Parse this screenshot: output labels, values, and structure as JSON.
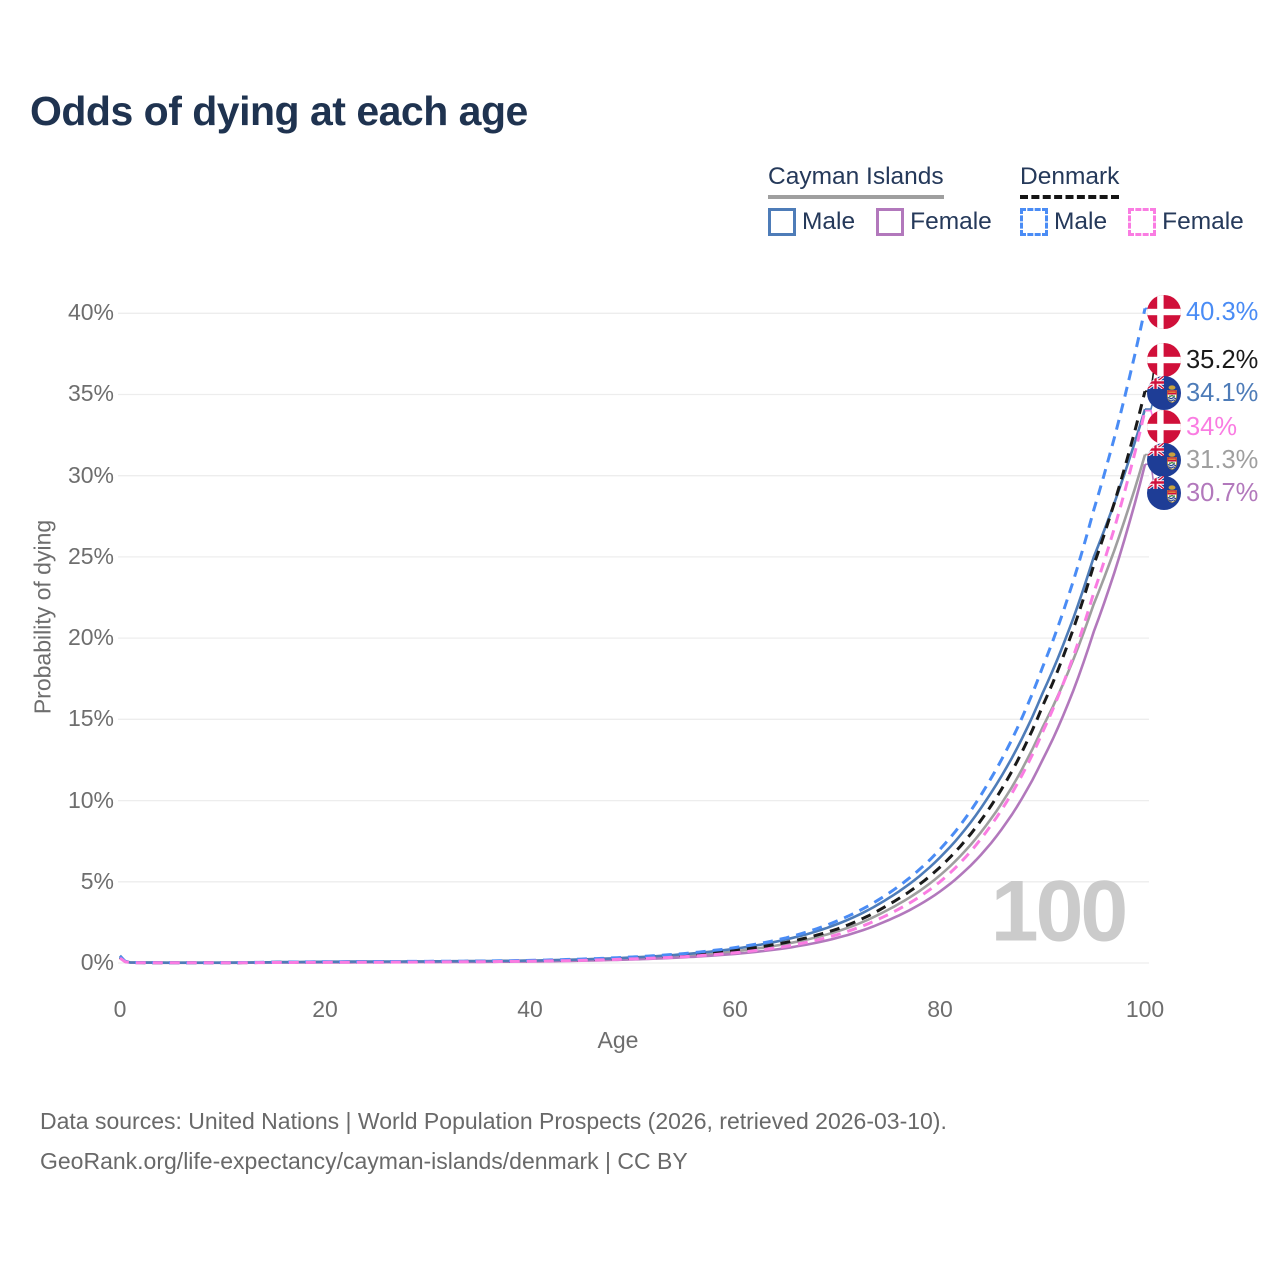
{
  "title": "Odds of dying at each age",
  "legend": {
    "groups": [
      {
        "title": "Cayman Islands",
        "line_style": "solid",
        "line_color": "#9f9f9f",
        "items": [
          {
            "label": "Male",
            "color": "#4e7cb8"
          },
          {
            "label": "Female",
            "color": "#b278bc"
          }
        ]
      },
      {
        "title": "Denmark",
        "line_style": "dashed",
        "line_color": "#151515",
        "items": [
          {
            "label": "Male",
            "color": "#4a8cf5"
          },
          {
            "label": "Female",
            "color": "#fa7ce2"
          }
        ]
      }
    ]
  },
  "chart_data": {
    "type": "line",
    "title": "Odds of dying at each age",
    "xlabel": "Age",
    "ylabel": "Probability of dying",
    "xlim": [
      0,
      100
    ],
    "ylim": [
      0,
      40
    ],
    "grid": "horizontal",
    "legend_position": "top-right",
    "watermark": "100",
    "x_ticks": {
      "values": [
        0,
        20,
        40,
        60,
        80,
        100
      ],
      "labels": [
        "0",
        "20",
        "40",
        "60",
        "80",
        "100"
      ]
    },
    "y_ticks": {
      "values": [
        0,
        5,
        10,
        15,
        20,
        25,
        30,
        35,
        40
      ],
      "labels": [
        "0%",
        "5%",
        "10%",
        "15%",
        "20%",
        "25%",
        "30%",
        "35%",
        "40%"
      ]
    },
    "x": [
      0,
      1,
      5,
      10,
      15,
      20,
      25,
      30,
      35,
      40,
      45,
      50,
      55,
      60,
      65,
      70,
      75,
      80,
      85,
      90,
      95,
      100
    ],
    "series": [
      {
        "name": "Denmark Male",
        "country": "Denmark",
        "color": "#4a8cf5",
        "dash": true,
        "end_label": "40.3%",
        "end_value": 40.3,
        "values": [
          0.4,
          0.03,
          0.02,
          0.02,
          0.05,
          0.08,
          0.09,
          0.1,
          0.12,
          0.16,
          0.24,
          0.37,
          0.58,
          0.95,
          1.55,
          2.6,
          4.3,
          7.0,
          11.4,
          18.2,
          27.9,
          40.3
        ]
      },
      {
        "name": "Denmark overall",
        "country": "Denmark",
        "color": "#1a1a1a",
        "dash": true,
        "end_label": "35.2%",
        "end_value": 35.2,
        "values": [
          0.35,
          0.025,
          0.015,
          0.015,
          0.04,
          0.06,
          0.07,
          0.08,
          0.1,
          0.13,
          0.19,
          0.3,
          0.47,
          0.77,
          1.27,
          2.1,
          3.6,
          5.9,
          9.7,
          15.8,
          24.5,
          35.2
        ]
      },
      {
        "name": "Cayman Islands Male",
        "country": "Cayman Islands",
        "color": "#4e7cb8",
        "dash": false,
        "end_label": "34.1%",
        "end_value": 34.1,
        "values": [
          0.45,
          0.03,
          0.02,
          0.02,
          0.05,
          0.08,
          0.09,
          0.1,
          0.12,
          0.15,
          0.22,
          0.34,
          0.54,
          0.88,
          1.45,
          2.4,
          4.0,
          6.5,
          10.5,
          16.6,
          25.0,
          34.1
        ]
      },
      {
        "name": "Denmark Female",
        "country": "Denmark",
        "color": "#fa7ce2",
        "dash": true,
        "end_label": "34%",
        "end_value": 34.0,
        "values": [
          0.3,
          0.02,
          0.012,
          0.012,
          0.03,
          0.04,
          0.05,
          0.06,
          0.08,
          0.11,
          0.16,
          0.25,
          0.39,
          0.63,
          1.03,
          1.75,
          3.0,
          5.0,
          8.5,
          14.2,
          22.8,
          34.0
        ]
      },
      {
        "name": "Cayman Islands overall",
        "country": "Cayman Islands",
        "color": "#9f9f9f",
        "dash": false,
        "end_label": "31.3%",
        "end_value": 31.3,
        "values": [
          0.4,
          0.028,
          0.018,
          0.018,
          0.04,
          0.06,
          0.07,
          0.08,
          0.1,
          0.12,
          0.18,
          0.28,
          0.44,
          0.72,
          1.18,
          1.95,
          3.3,
          5.4,
          8.9,
          14.5,
          22.1,
          31.3
        ]
      },
      {
        "name": "Cayman Islands Female",
        "country": "Cayman Islands",
        "color": "#b278bc",
        "dash": false,
        "end_label": "30.7%",
        "end_value": 30.7,
        "values": [
          0.35,
          0.022,
          0.012,
          0.012,
          0.025,
          0.035,
          0.045,
          0.055,
          0.07,
          0.09,
          0.14,
          0.22,
          0.35,
          0.56,
          0.92,
          1.55,
          2.65,
          4.4,
          7.4,
          12.5,
          20.4,
          30.7
        ]
      }
    ]
  },
  "footer": {
    "line1": "Data sources: United Nations | World Population Prospects (2026, retrieved 2026-03-10).",
    "line2": "GeoRank.org/life-expectancy/cayman-islands/denmark | CC BY"
  }
}
